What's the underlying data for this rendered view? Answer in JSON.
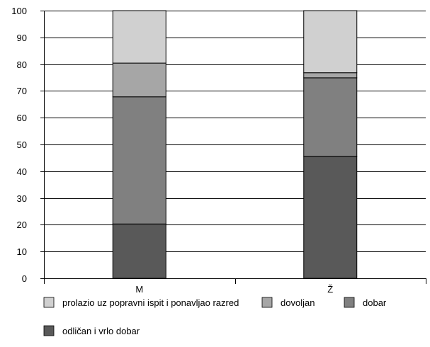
{
  "chart_data": {
    "type": "bar",
    "stacked": true,
    "categories": [
      "M",
      "Ž"
    ],
    "series": [
      {
        "name": "odličan i vrlo dobar",
        "color": "#595959",
        "values": [
          20.3,
          45.6
        ]
      },
      {
        "name": "dobar",
        "color": "#808080",
        "values": [
          47.5,
          29.3
        ]
      },
      {
        "name": "dovoljan",
        "color": "#a6a6a6",
        "values": [
          12.6,
          1.9
        ]
      },
      {
        "name": "prolazio uz popravni ispit i ponavljao razred",
        "color": "#d0d0d0",
        "values": [
          19.6,
          23.2
        ]
      }
    ],
    "ylim": [
      0,
      100
    ],
    "yticks": [
      0,
      10,
      20,
      30,
      40,
      50,
      60,
      70,
      80,
      90,
      100
    ],
    "grid": true,
    "legend": {
      "position": "bottom",
      "order": [
        "prolazio uz popravni ispit i ponavljao razred",
        "dovoljan",
        "dobar",
        "odličan i vrlo dobar"
      ]
    }
  }
}
